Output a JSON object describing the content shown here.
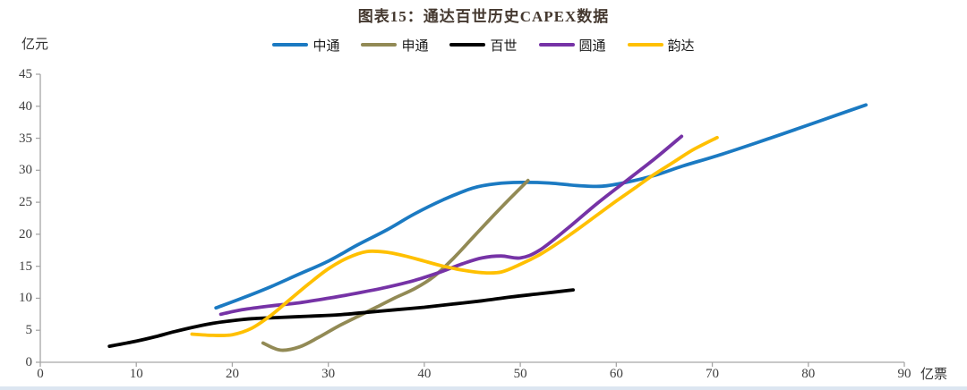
{
  "page": {
    "background": "#ffffff",
    "bottom_strip_color": "#dce6f1"
  },
  "chart_data": {
    "type": "line",
    "title": "图表15：通达百世历史CAPEX数据",
    "title_color": "#44382f",
    "xlabel": "亿票",
    "ylabel": "亿元",
    "xlim": [
      0,
      90
    ],
    "ylim": [
      0,
      45
    ],
    "x_tick_step": 10,
    "y_tick_step": 5,
    "x_ticks": [
      0,
      10,
      20,
      30,
      40,
      50,
      60,
      70,
      80,
      90
    ],
    "y_ticks": [
      0,
      5,
      10,
      15,
      20,
      25,
      30,
      35,
      40,
      45
    ],
    "grid": false,
    "legend_position": "top-center",
    "axis_color": "#a6a6a6",
    "tick_label_color": "#3f3f3f",
    "series": [
      {
        "id": "zhongtong",
        "name": "中通",
        "color": "#1b7ac2",
        "points": [
          [
            18.3,
            8.5
          ],
          [
            21,
            10.0
          ],
          [
            24,
            11.8
          ],
          [
            27,
            13.8
          ],
          [
            30,
            15.8
          ],
          [
            33,
            18.3
          ],
          [
            36,
            20.6
          ],
          [
            39,
            23.2
          ],
          [
            42,
            25.4
          ],
          [
            45,
            27.2
          ],
          [
            47.5,
            27.9
          ],
          [
            50,
            28.1
          ],
          [
            53,
            28.0
          ],
          [
            56,
            27.6
          ],
          [
            58.5,
            27.5
          ],
          [
            61,
            28.1
          ],
          [
            64,
            29.2
          ],
          [
            67,
            30.7
          ],
          [
            71,
            32.5
          ],
          [
            76,
            35.0
          ],
          [
            81,
            37.6
          ],
          [
            86,
            40.2
          ]
        ]
      },
      {
        "id": "shentong",
        "name": "申通",
        "color": "#928a55",
        "points": [
          [
            23.2,
            3.0
          ],
          [
            25,
            1.9
          ],
          [
            27,
            2.4
          ],
          [
            29,
            3.9
          ],
          [
            31,
            5.6
          ],
          [
            33,
            7.1
          ],
          [
            35,
            8.6
          ],
          [
            37,
            10.1
          ],
          [
            39,
            11.5
          ],
          [
            41,
            13.4
          ],
          [
            43,
            16.2
          ],
          [
            45,
            19.4
          ],
          [
            47,
            22.6
          ],
          [
            49,
            25.7
          ],
          [
            50.8,
            28.4
          ]
        ]
      },
      {
        "id": "baishi",
        "name": "百世",
        "color": "#010101",
        "points": [
          [
            7.2,
            2.5
          ],
          [
            10,
            3.3
          ],
          [
            12,
            4.0
          ],
          [
            14,
            4.8
          ],
          [
            16,
            5.5
          ],
          [
            18,
            6.1
          ],
          [
            20,
            6.5
          ],
          [
            22,
            6.8
          ],
          [
            25,
            7.0
          ],
          [
            28,
            7.2
          ],
          [
            31,
            7.4
          ],
          [
            34,
            7.8
          ],
          [
            37,
            8.2
          ],
          [
            40,
            8.6
          ],
          [
            43,
            9.1
          ],
          [
            46,
            9.6
          ],
          [
            49,
            10.2
          ],
          [
            52,
            10.7
          ],
          [
            55.5,
            11.3
          ]
        ]
      },
      {
        "id": "yuantong",
        "name": "圆通",
        "color": "#7633a6",
        "points": [
          [
            18.8,
            7.5
          ],
          [
            21,
            8.2
          ],
          [
            24,
            8.8
          ],
          [
            27,
            9.3
          ],
          [
            30,
            10.0
          ],
          [
            33,
            10.8
          ],
          [
            36,
            11.7
          ],
          [
            39,
            12.8
          ],
          [
            41.5,
            14.0
          ],
          [
            44,
            15.4
          ],
          [
            46,
            16.3
          ],
          [
            48,
            16.6
          ],
          [
            50,
            16.3
          ],
          [
            52,
            17.5
          ],
          [
            55,
            21.0
          ],
          [
            58,
            24.8
          ],
          [
            61,
            28.3
          ],
          [
            64,
            31.8
          ],
          [
            66.8,
            35.3
          ]
        ]
      },
      {
        "id": "yunda",
        "name": "韵达",
        "color": "#ffc000",
        "points": [
          [
            15.8,
            4.4
          ],
          [
            18,
            4.2
          ],
          [
            20,
            4.3
          ],
          [
            22,
            5.3
          ],
          [
            24,
            7.3
          ],
          [
            26,
            9.8
          ],
          [
            28,
            12.3
          ],
          [
            30,
            14.6
          ],
          [
            32,
            16.3
          ],
          [
            34,
            17.3
          ],
          [
            36,
            17.2
          ],
          [
            38,
            16.6
          ],
          [
            40,
            15.8
          ],
          [
            42,
            15.0
          ],
          [
            44,
            14.4
          ],
          [
            46,
            14.0
          ],
          [
            48,
            14.1
          ],
          [
            50,
            15.3
          ],
          [
            52,
            16.8
          ],
          [
            54,
            18.7
          ],
          [
            56,
            20.8
          ],
          [
            58,
            23.0
          ],
          [
            60,
            25.2
          ],
          [
            62,
            27.3
          ],
          [
            64,
            29.4
          ],
          [
            66,
            31.3
          ],
          [
            68,
            33.2
          ],
          [
            70.5,
            35.1
          ]
        ]
      }
    ]
  }
}
